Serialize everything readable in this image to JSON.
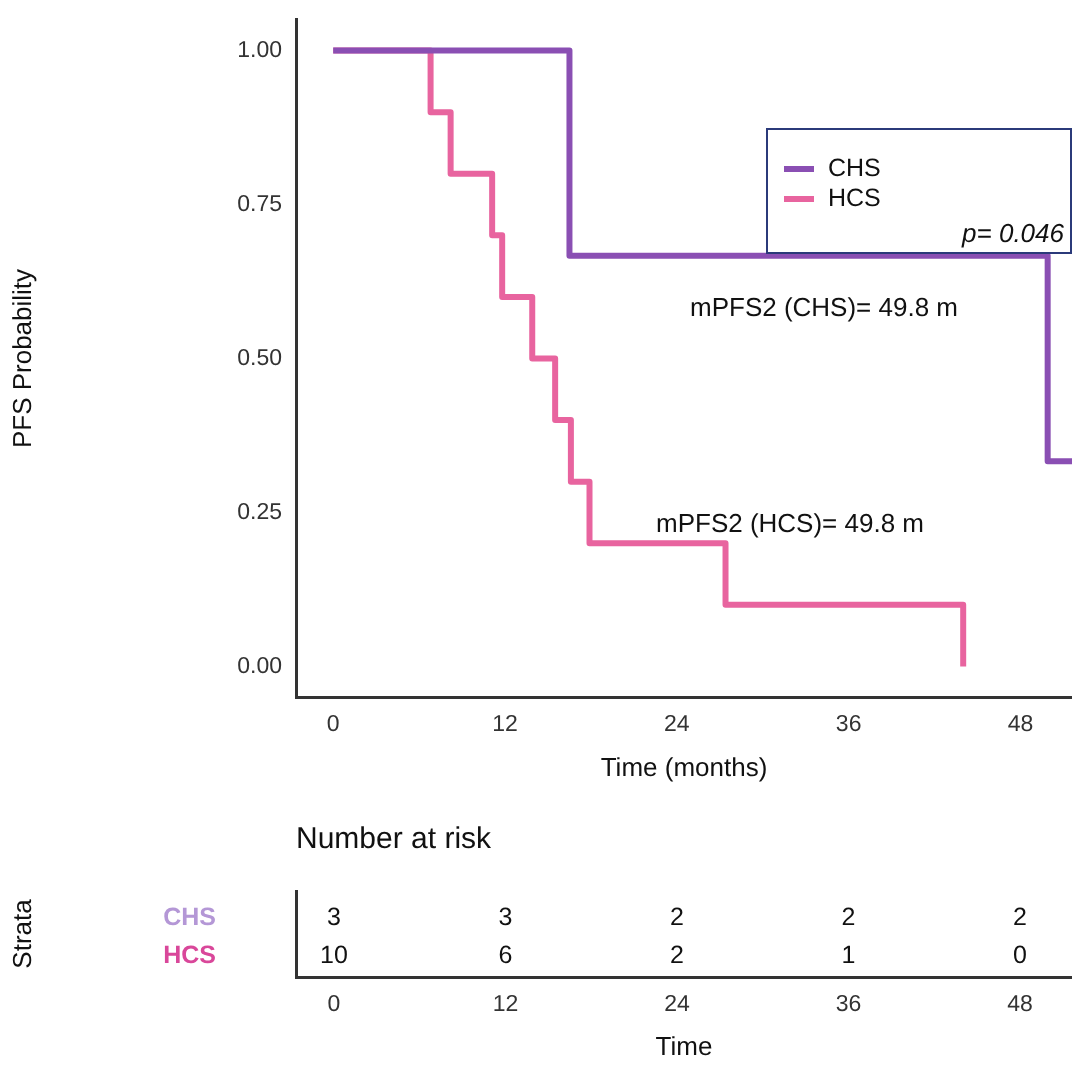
{
  "chart_data": [
    {
      "type": "step",
      "xlabel": "Time (months)",
      "ylabel": "PFS Probability",
      "series": [
        {
          "name": "CHS",
          "color": "#8a4fb3",
          "x": [
            0,
            16.5,
            49.9,
            51.6
          ],
          "values": [
            1,
            0.667,
            0.333,
            0.333
          ]
        },
        {
          "name": "HCS",
          "color": "#e8649f",
          "x": [
            0,
            6.8,
            8.2,
            11.1,
            11.8,
            13.9,
            15.5,
            16.6,
            17.9,
            27.4,
            44
          ],
          "values": [
            1,
            0.9,
            0.8,
            0.7,
            0.6,
            0.5,
            0.4,
            0.3,
            0.2,
            0.1,
            0
          ]
        }
      ],
      "xlim": [
        -2.6,
        51.6
      ],
      "ylim": [
        -0.05,
        1.05
      ],
      "xticks": [
        0,
        12,
        24,
        36,
        48
      ],
      "yticks": [
        {
          "value": 0,
          "label": "0.00"
        },
        {
          "value": 0.25,
          "label": "0.25"
        },
        {
          "value": 0.5,
          "label": "0.50"
        },
        {
          "value": 0.75,
          "label": "0.75"
        },
        {
          "value": 1,
          "label": "1.00"
        }
      ],
      "legend": "top right",
      "grid": false,
      "annotations": [
        "p= 0.046",
        "mPFS2 (CHS)= 49.8 m",
        "mPFS2 (HCS)= 49.8 m"
      ]
    },
    {
      "type": "heatmap",
      "title": "Number at risk",
      "xlabel": "Time",
      "ylabel": "Strata",
      "categories": [
        "0",
        "12",
        "24",
        "36",
        "48"
      ],
      "y_categories": [
        "CHS",
        "HCS"
      ],
      "cells": [
        [
          3,
          3,
          2,
          2,
          2
        ],
        [
          10,
          6,
          2,
          1,
          0
        ]
      ],
      "data_labels": true
    }
  ]
}
